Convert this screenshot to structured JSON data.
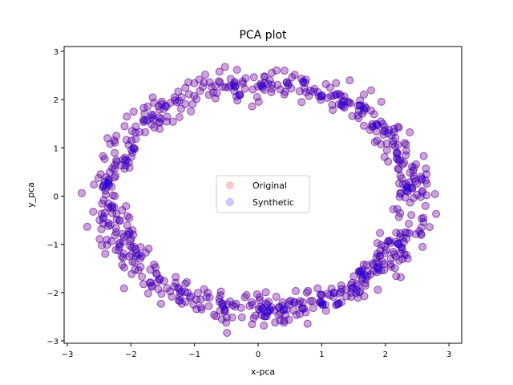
{
  "chart_data": {
    "type": "scatter",
    "title": "PCA plot",
    "xlabel": "x-pca",
    "ylabel": "y_pca",
    "xlim": [
      -3.05,
      3.2
    ],
    "ylim": [
      -3.05,
      3.1
    ],
    "xticks": [
      -3,
      -2,
      -1,
      0,
      1,
      2,
      3
    ],
    "yticks": [
      -3,
      -2,
      -1,
      0,
      1,
      2,
      3
    ],
    "grid": false,
    "legend": {
      "position": "center"
    },
    "series": [
      {
        "name": "Original",
        "color": "#ff0000",
        "alpha": 0.2,
        "shape": "ring",
        "center": [
          0.05,
          0.0
        ],
        "x_radius": 2.4,
        "y_radius": 2.35,
        "radial_spread": 0.16,
        "count": 700
      },
      {
        "name": "Synthetic",
        "color": "#0000ff",
        "alpha": 0.2,
        "shape": "ring",
        "center": [
          0.05,
          0.0
        ],
        "x_radius": 2.4,
        "y_radius": 2.35,
        "radial_spread": 0.16,
        "count": 700
      }
    ]
  }
}
